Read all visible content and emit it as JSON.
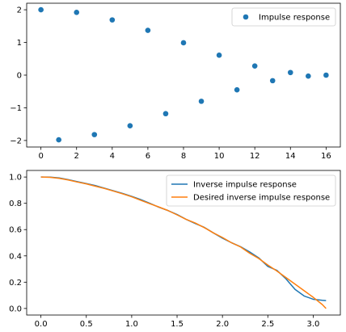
{
  "chart_data": [
    {
      "type": "scatter",
      "title": "",
      "xlabel": "",
      "ylabel": "",
      "xlim": [
        -0.8,
        16.8
      ],
      "ylim": [
        -2.2,
        2.2
      ],
      "xticks": [
        0,
        2,
        4,
        6,
        8,
        10,
        12,
        14,
        16
      ],
      "yticks": [
        -2,
        -1,
        0,
        1,
        2
      ],
      "ytick_labels": [
        "−2",
        "−1",
        "0",
        "1",
        "2"
      ],
      "legend_position": "upper-right",
      "grid": false,
      "series": [
        {
          "name": "Impulse response",
          "color": "#1f77b4",
          "x": [
            0,
            1,
            2,
            3,
            4,
            5,
            6,
            7,
            8,
            9,
            10,
            11,
            12,
            13,
            14,
            15,
            16
          ],
          "y": [
            2.0,
            -1.98,
            1.92,
            -1.82,
            1.69,
            -1.55,
            1.37,
            -1.18,
            0.99,
            -0.8,
            0.61,
            -0.45,
            0.28,
            -0.17,
            0.08,
            -0.03,
            0.0
          ]
        }
      ]
    },
    {
      "type": "line",
      "title": "",
      "xlabel": "",
      "ylabel": "",
      "xlim": [
        -0.157,
        3.299
      ],
      "ylim": [
        -0.05,
        1.05
      ],
      "xticks": [
        0.0,
        0.5,
        1.0,
        1.5,
        2.0,
        2.5,
        3.0
      ],
      "xtick_labels": [
        "0.0",
        "0.5",
        "1.0",
        "1.5",
        "2.0",
        "2.5",
        "3.0"
      ],
      "yticks": [
        0.0,
        0.2,
        0.4,
        0.6,
        0.8,
        1.0
      ],
      "ytick_labels": [
        "0.0",
        "0.2",
        "0.4",
        "0.6",
        "0.8",
        "1.0"
      ],
      "legend_position": "upper-right",
      "grid": false,
      "series": [
        {
          "name": "Inverse impulse response",
          "color": "#1f77b4",
          "x": [
            0.0,
            0.1,
            0.2,
            0.3,
            0.4,
            0.5,
            0.6,
            0.7,
            0.8,
            0.9,
            1.0,
            1.1,
            1.2,
            1.3,
            1.4,
            1.5,
            1.6,
            1.7,
            1.8,
            1.9,
            2.0,
            2.1,
            2.2,
            2.3,
            2.4,
            2.5,
            2.6,
            2.7,
            2.8,
            2.9,
            3.0,
            3.1,
            3.1416
          ],
          "y": [
            1.0,
            0.999,
            0.993,
            0.98,
            0.965,
            0.95,
            0.935,
            0.915,
            0.895,
            0.875,
            0.853,
            0.828,
            0.8,
            0.77,
            0.745,
            0.715,
            0.678,
            0.646,
            0.617,
            0.575,
            0.535,
            0.5,
            0.47,
            0.43,
            0.385,
            0.32,
            0.29,
            0.225,
            0.145,
            0.095,
            0.07,
            0.062,
            0.06
          ]
        },
        {
          "name": "Desired inverse impulse response",
          "color": "#ff7f0e",
          "x": [
            0.0,
            0.1,
            0.2,
            0.3,
            0.4,
            0.5,
            0.6,
            0.7,
            0.8,
            0.9,
            1.0,
            1.1,
            1.2,
            1.3,
            1.4,
            1.5,
            1.6,
            1.7,
            1.8,
            1.9,
            2.0,
            2.1,
            2.2,
            2.3,
            2.4,
            2.5,
            2.6,
            2.7,
            2.8,
            2.9,
            3.0,
            3.1,
            3.1416
          ],
          "y": [
            1.0,
            0.998,
            0.99,
            0.978,
            0.962,
            0.948,
            0.93,
            0.913,
            0.893,
            0.872,
            0.85,
            0.823,
            0.797,
            0.772,
            0.745,
            0.712,
            0.678,
            0.65,
            0.615,
            0.575,
            0.54,
            0.5,
            0.468,
            0.42,
            0.38,
            0.33,
            0.285,
            0.235,
            0.185,
            0.135,
            0.085,
            0.03,
            0.0
          ]
        }
      ]
    }
  ]
}
